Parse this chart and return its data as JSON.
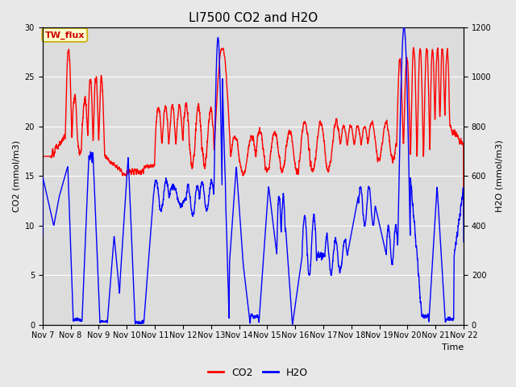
{
  "title": "LI7500 CO2 and H2O",
  "xlabel": "Time",
  "ylabel_left": "CO2 (mmol/m3)",
  "ylabel_right": "H2O (mmol/m3)",
  "xlim_days": [
    7,
    22
  ],
  "ylim_left": [
    0,
    30
  ],
  "ylim_right": [
    0,
    1200
  ],
  "yticks_left": [
    0,
    5,
    10,
    15,
    20,
    25,
    30
  ],
  "yticks_right": [
    0,
    200,
    400,
    600,
    800,
    1000,
    1200
  ],
  "xtick_labels": [
    "Nov 7",
    "Nov 8",
    "Nov 9",
    "Nov 10",
    "Nov 11",
    "Nov 12",
    "Nov 13",
    "Nov 14",
    "Nov 15",
    "Nov 16",
    "Nov 17",
    "Nov 18",
    "Nov 19",
    "Nov 20",
    "Nov 21",
    "Nov 22"
  ],
  "xtick_positions": [
    7,
    8,
    9,
    10,
    11,
    12,
    13,
    14,
    15,
    16,
    17,
    18,
    19,
    20,
    21,
    22
  ],
  "co2_color": "#FF0000",
  "h2o_color": "#0000FF",
  "fig_bg_color": "#E8E8E8",
  "plot_bg_color": "#DCDCDC",
  "annotation_text": "TW_flux",
  "annotation_color": "#CC0000",
  "annotation_bg": "#FFFFCC",
  "annotation_border": "#CCAA00",
  "title_fontsize": 11,
  "axis_fontsize": 8,
  "tick_fontsize": 7,
  "legend_fontsize": 9,
  "line_width": 1.0
}
